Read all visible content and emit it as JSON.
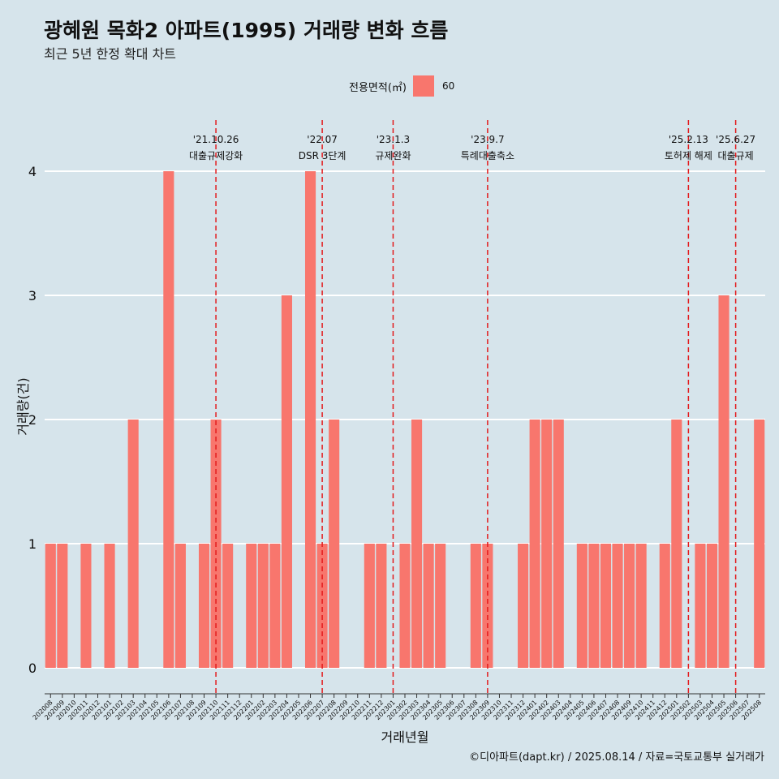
{
  "title": "광혜원 목화2 아파트(1995) 거래량 변화 흐름",
  "subtitle": "최근 5년 한정 확대 차트",
  "caption": "©디아파트(dapt.kr) / 2025.08.14 / 자료=국토교통부 실거래가",
  "legend": {
    "title": "전용면적(㎡)",
    "item": "60",
    "color": "#f8766d"
  },
  "chart_data": {
    "type": "bar",
    "xlabel": "거래년월",
    "ylabel": "거래량(건)",
    "ylim": [
      0,
      4
    ],
    "yticks": [
      "0",
      "1",
      "2",
      "3",
      "4"
    ],
    "grid": true,
    "categories": [
      "202008",
      "202009",
      "202010",
      "202011",
      "202012",
      "202101",
      "202102",
      "202103",
      "202104",
      "202105",
      "202106",
      "202107",
      "202108",
      "202109",
      "202110",
      "202111",
      "202112",
      "202201",
      "202202",
      "202203",
      "202204",
      "202205",
      "202206",
      "202207",
      "202208",
      "202209",
      "202210",
      "202211",
      "202212",
      "202301",
      "202302",
      "202303",
      "202304",
      "202305",
      "202306",
      "202307",
      "202308",
      "202309",
      "202310",
      "202311",
      "202312",
      "202401",
      "202402",
      "202403",
      "202404",
      "202405",
      "202406",
      "202407",
      "202408",
      "202409",
      "202410",
      "202411",
      "202412",
      "202501",
      "202502",
      "202503",
      "202504",
      "202505",
      "202506",
      "202507",
      "202508"
    ],
    "series": [
      {
        "name": "60",
        "color": "#f8766d",
        "values": [
          1,
          1,
          0,
          1,
          0,
          1,
          0,
          2,
          0,
          0,
          4,
          1,
          0,
          1,
          2,
          1,
          0,
          1,
          1,
          1,
          3,
          0,
          4,
          1,
          2,
          0,
          0,
          1,
          1,
          0,
          1,
          2,
          1,
          1,
          0,
          0,
          1,
          1,
          0,
          0,
          1,
          2,
          2,
          2,
          0,
          1,
          1,
          1,
          1,
          1,
          1,
          0,
          1,
          2,
          0,
          1,
          1,
          3,
          0,
          0,
          2
        ]
      }
    ],
    "annotations": [
      {
        "date": "'21.10.26",
        "label": "대출규제강화",
        "category": "202110"
      },
      {
        "date": "'22.07",
        "label": "DSR 3단계",
        "category": "202207"
      },
      {
        "date": "'23.1.3",
        "label": "규제완화",
        "category": "202301"
      },
      {
        "date": "'23.9.7",
        "label": "특례대출축소",
        "category": "202309"
      },
      {
        "date": "'25.2.13",
        "label": "토허제 해제",
        "category": "202502"
      },
      {
        "date": "'25.6.27",
        "label": "대출규제",
        "category": "202506"
      }
    ]
  }
}
